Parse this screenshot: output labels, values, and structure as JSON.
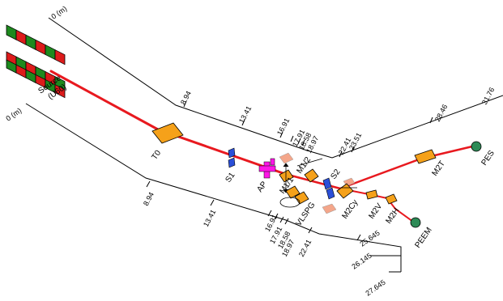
{
  "scales": {
    "upper": [
      "0 (m)",
      "8.94",
      "13.41",
      "16.91",
      "17.91",
      "18.58",
      "18.97",
      "22.41",
      "23.51",
      "28.46",
      "31.76"
    ],
    "lower": [
      "0 (m)",
      "8.94",
      "13.41",
      "16.91",
      "17.91",
      "18.58",
      "18.97",
      "22.41",
      "25.645",
      "26.145",
      "27.645"
    ]
  },
  "components": {
    "source": "Source",
    "source_sub": "(U60)",
    "t0": "T0",
    "s1": "S1",
    "ap": "AP",
    "m1_1": "M1/1",
    "m1_2": "M1/2",
    "vlspg": "VLSPG",
    "s2": "S2",
    "m2cy": "M2Cy",
    "m2v": "M2V",
    "m2h": "M2H",
    "m2t": "M2T",
    "pes": "PES",
    "peem": "PEEM"
  },
  "colors": {
    "beam": "#e8191f",
    "mirror": "#f5a11a",
    "slit": "#2a4fd8",
    "aperture": "#ff17e6",
    "pale": "#f4a68a",
    "endstation": "#2e8b57",
    "magnet_green": "#1e8a1e",
    "magnet_red": "#dd1b1b"
  }
}
